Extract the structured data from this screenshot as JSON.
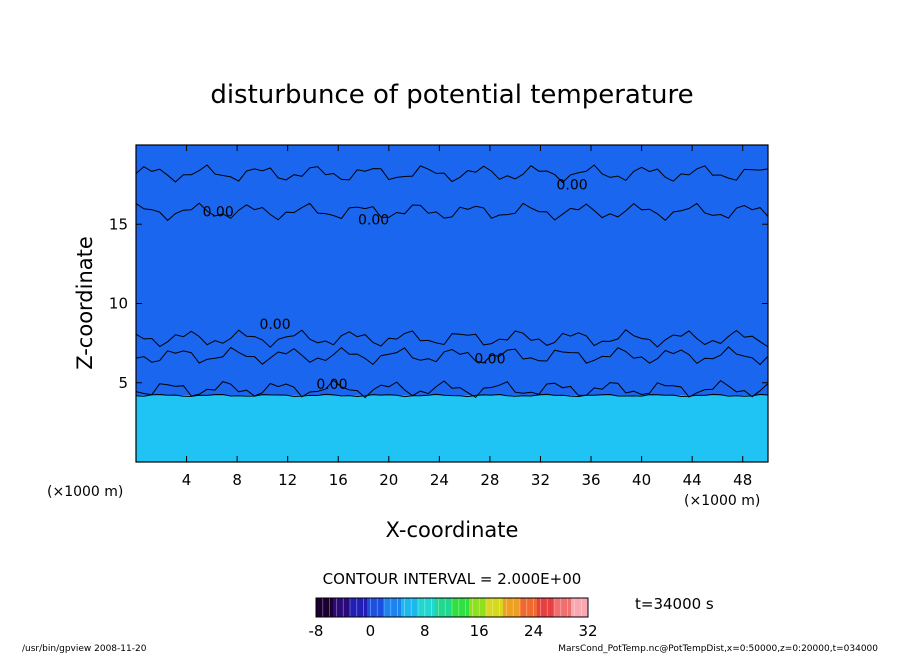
{
  "chart_data": {
    "type": "heatmap",
    "title": "disturbunce of potential temperature",
    "xlabel": "X-coordinate",
    "ylabel": "Z-coordinate",
    "x_unit_label": "(×1000 m)",
    "y_unit_label": "(×1000 m)",
    "xlim": [
      0,
      50
    ],
    "ylim": [
      0,
      20
    ],
    "x_ticks": [
      4,
      8,
      12,
      16,
      20,
      24,
      28,
      32,
      36,
      40,
      44,
      48
    ],
    "y_ticks": [
      5,
      10,
      15
    ],
    "contour_labels": [
      "0.00",
      "0.00",
      "0.00",
      "0.00",
      "0.00",
      "0.00"
    ],
    "contour_interval_text": "CONTOUR INTERVAL = 2.000E+00",
    "time_text": "t=34000 s",
    "colorbar": {
      "min": -8,
      "max": 32,
      "tick_labels": [
        "-8",
        "0",
        "8",
        "16",
        "24",
        "32"
      ],
      "colors": [
        "#1a0030",
        "#2a0a7a",
        "#1f1fb8",
        "#1a4fe0",
        "#1c84f0",
        "#1cb8f0",
        "#20d8d0",
        "#20d890",
        "#30e040",
        "#8ee020",
        "#d8d820",
        "#f0a020",
        "#f06a30",
        "#e84040",
        "#f07070",
        "#f8a8b0"
      ]
    },
    "field": {
      "upper_color": "#1a66ee",
      "lower_color": "#1fc4f4",
      "boundary_z": 4.2
    }
  },
  "footer": {
    "left": "/usr/bin/gpview  2008-11-20",
    "right": "MarsCond_PotTemp.nc@PotTempDist,x=0:50000,z=0:20000,t=034000"
  }
}
